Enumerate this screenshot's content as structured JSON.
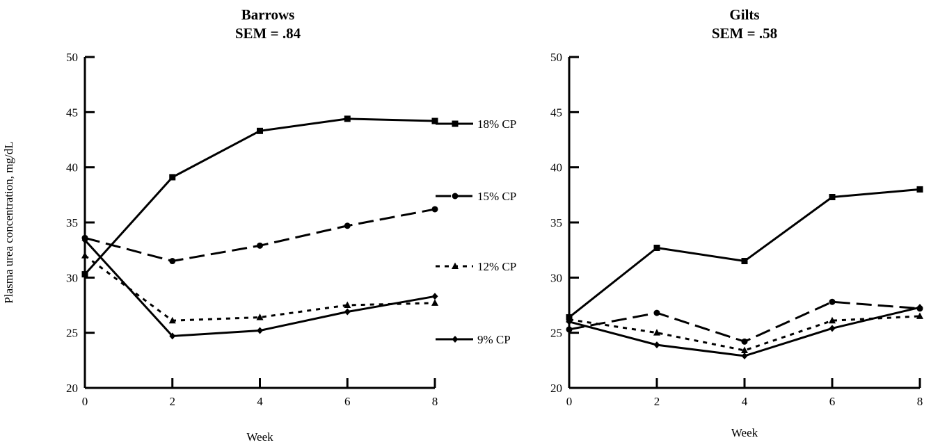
{
  "chart_data": [
    {
      "type": "line",
      "title": "Barrows",
      "subtitle": "SEM = .84",
      "xlabel": "Week",
      "ylabel": "Plasma urea concentration, mg/dL",
      "x": [
        0,
        2,
        4,
        6,
        8
      ],
      "xlim": [
        0,
        8
      ],
      "ylim": [
        20,
        50
      ],
      "xticks": [
        "0",
        "2",
        "4",
        "6",
        "8"
      ],
      "yticks": [
        "20",
        "25",
        "30",
        "35",
        "40",
        "45",
        "50"
      ],
      "grid": false,
      "legend": "right",
      "series": [
        {
          "name": "18% CP",
          "marker": "square",
          "dash": "solid",
          "values": [
            30.3,
            39.1,
            43.3,
            44.4,
            44.2
          ]
        },
        {
          "name": "15% CP",
          "marker": "circle",
          "dash": "dashed",
          "values": [
            33.6,
            31.5,
            32.9,
            34.7,
            36.2
          ]
        },
        {
          "name": "12% CP",
          "marker": "triangle",
          "dash": "dotted",
          "values": [
            32.0,
            26.1,
            26.4,
            27.5,
            27.7
          ]
        },
        {
          "name": "9% CP",
          "marker": "diamond",
          "dash": "solid",
          "values": [
            33.4,
            24.7,
            25.2,
            26.9,
            28.3
          ]
        }
      ]
    },
    {
      "type": "line",
      "title": "Gilts",
      "subtitle": "SEM = .58",
      "xlabel": "Week",
      "ylabel": "",
      "x": [
        0,
        2,
        4,
        6,
        8
      ],
      "xlim": [
        0,
        8
      ],
      "ylim": [
        20,
        50
      ],
      "xticks": [
        "0",
        "2",
        "4",
        "6",
        "8"
      ],
      "yticks": [
        "20",
        "25",
        "30",
        "35",
        "40",
        "45",
        "50"
      ],
      "grid": false,
      "legend": "none",
      "series": [
        {
          "name": "18% CP",
          "marker": "square",
          "dash": "solid",
          "values": [
            26.4,
            32.7,
            31.5,
            37.3,
            38.0
          ]
        },
        {
          "name": "15% CP",
          "marker": "circle",
          "dash": "dashed",
          "values": [
            25.3,
            26.8,
            24.2,
            27.8,
            27.2
          ]
        },
        {
          "name": "12% CP",
          "marker": "triangle",
          "dash": "dotted",
          "values": [
            26.2,
            25.0,
            23.4,
            26.1,
            26.5
          ]
        },
        {
          "name": "9% CP",
          "marker": "diamond",
          "dash": "solid",
          "values": [
            26.0,
            23.9,
            22.9,
            25.4,
            27.3
          ]
        }
      ]
    }
  ]
}
